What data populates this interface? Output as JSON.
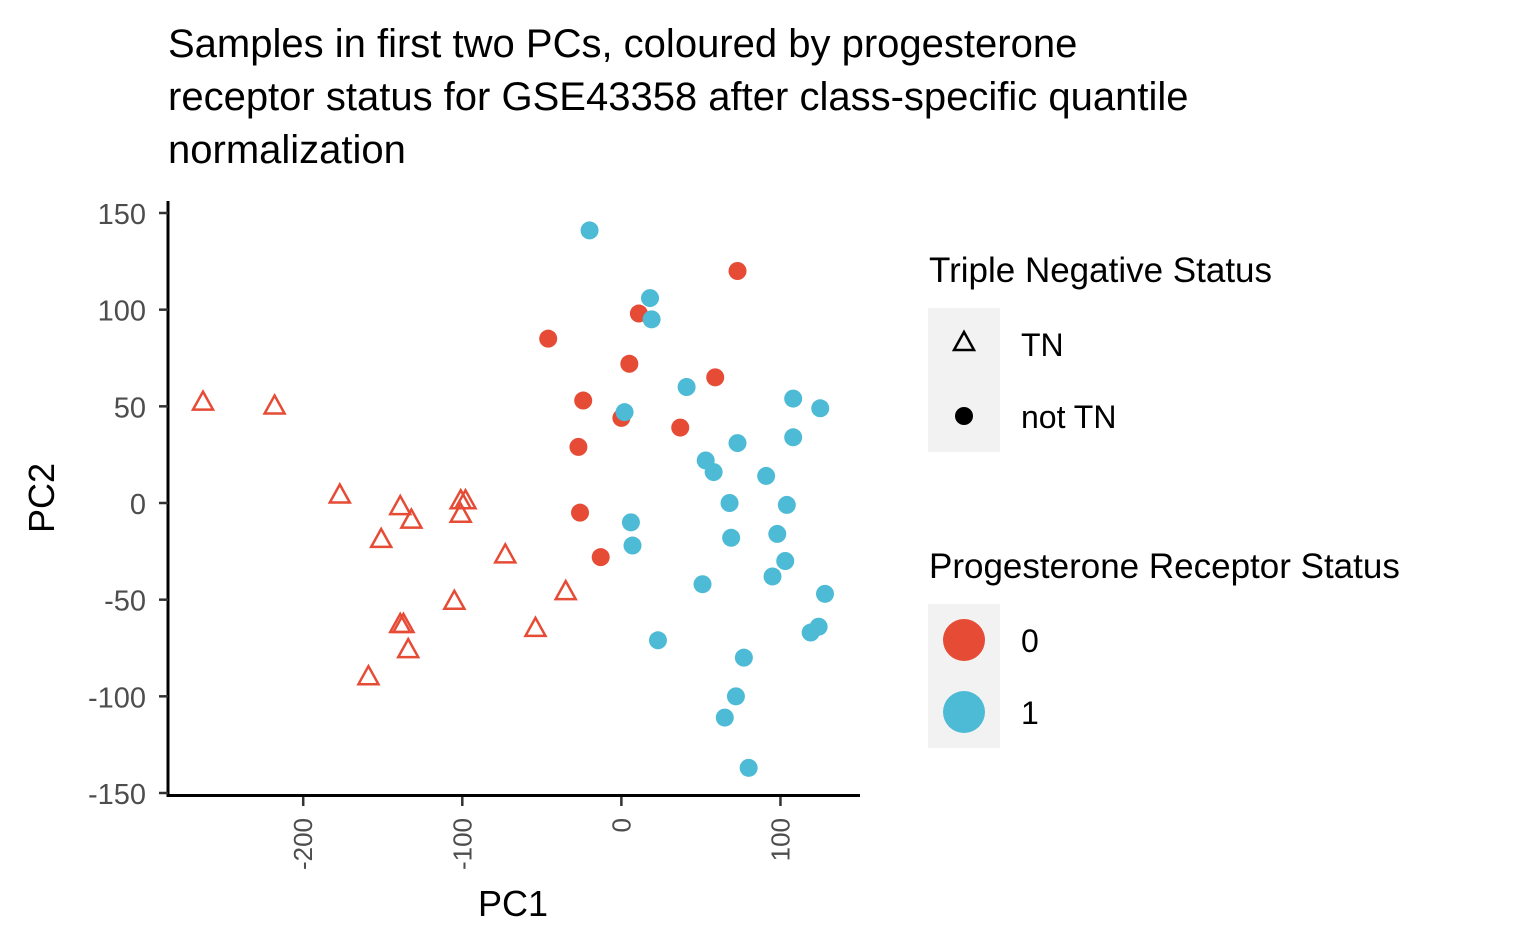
{
  "chart_data": {
    "type": "scatter",
    "title_lines": [
      "Samples in first two PCs, coloured by progesterone",
      "receptor status for GSE43358 after class-specific quantile",
      "normalization"
    ],
    "xlabel": "PC1",
    "ylabel": "PC2",
    "xlim": [
      -285,
      150
    ],
    "ylim": [
      -150,
      150
    ],
    "x_ticks": [
      {
        "value": -200,
        "label": "-200"
      },
      {
        "value": -100,
        "label": "-100"
      },
      {
        "value": 0,
        "label": "0"
      },
      {
        "value": 100,
        "label": "100"
      }
    ],
    "y_ticks": [
      {
        "value": 150,
        "label": "150"
      },
      {
        "value": 100,
        "label": "100"
      },
      {
        "value": 50,
        "label": "50"
      },
      {
        "value": 0,
        "label": "0"
      },
      {
        "value": -50,
        "label": "-50"
      },
      {
        "value": -100,
        "label": "-100"
      },
      {
        "value": -150,
        "label": "-150"
      }
    ],
    "grid": false,
    "legend_placement": "right",
    "colors": {
      "pr0": "#E64B35",
      "pr1": "#4DBBD5"
    },
    "legends": {
      "shape": {
        "title": "Triple Negative Status",
        "entries": [
          {
            "label": "TN",
            "shape": "triangle-open"
          },
          {
            "label": "not TN",
            "shape": "circle-filled"
          }
        ]
      },
      "color": {
        "title": "Progesterone Receptor Status",
        "entries": [
          {
            "label": "0",
            "color": "#E64B35"
          },
          {
            "label": "1",
            "color": "#4DBBD5"
          }
        ]
      }
    },
    "series": [
      {
        "pr_status": "0",
        "tn_status": "TN",
        "shape": "triangle-open",
        "color": "#E64B35",
        "points": [
          [
            -263,
            52
          ],
          [
            -218,
            50
          ],
          [
            -177,
            4
          ],
          [
            -159,
            -90
          ],
          [
            -151,
            -19
          ],
          [
            -139,
            -2
          ],
          [
            -139,
            -63
          ],
          [
            -137,
            -63
          ],
          [
            -134,
            -76
          ],
          [
            -132,
            -9
          ],
          [
            -105,
            -51
          ],
          [
            -101,
            1
          ],
          [
            -101,
            -6
          ],
          [
            -98,
            1
          ],
          [
            -73,
            -27
          ],
          [
            -54,
            -65
          ],
          [
            -35,
            -46
          ]
        ]
      },
      {
        "pr_status": "0",
        "tn_status": "not TN",
        "shape": "circle-filled",
        "color": "#E64B35",
        "points": [
          [
            -46,
            85
          ],
          [
            -27,
            29
          ],
          [
            -26,
            -5
          ],
          [
            -24,
            53
          ],
          [
            -13,
            -28
          ],
          [
            0,
            44
          ],
          [
            5,
            72
          ],
          [
            11,
            98
          ],
          [
            37,
            39
          ],
          [
            59,
            65
          ],
          [
            73,
            120
          ]
        ]
      },
      {
        "pr_status": "1",
        "tn_status": "not TN",
        "shape": "circle-filled",
        "color": "#4DBBD5",
        "points": [
          [
            -20,
            141
          ],
          [
            2,
            47
          ],
          [
            6,
            -10
          ],
          [
            7,
            -22
          ],
          [
            18,
            106
          ],
          [
            19,
            95
          ],
          [
            23,
            -71
          ],
          [
            41,
            60
          ],
          [
            51,
            -42
          ],
          [
            53,
            22
          ],
          [
            58,
            16
          ],
          [
            65,
            -111
          ],
          [
            68,
            0
          ],
          [
            69,
            -18
          ],
          [
            72,
            -100
          ],
          [
            73,
            31
          ],
          [
            77,
            -80
          ],
          [
            80,
            -137
          ],
          [
            91,
            14
          ],
          [
            95,
            -38
          ],
          [
            98,
            -16
          ],
          [
            103,
            -30
          ],
          [
            104,
            -1
          ],
          [
            108,
            54
          ],
          [
            108,
            34
          ],
          [
            119,
            -67
          ],
          [
            124,
            -64
          ],
          [
            125,
            49
          ],
          [
            128,
            -47
          ]
        ]
      }
    ]
  }
}
